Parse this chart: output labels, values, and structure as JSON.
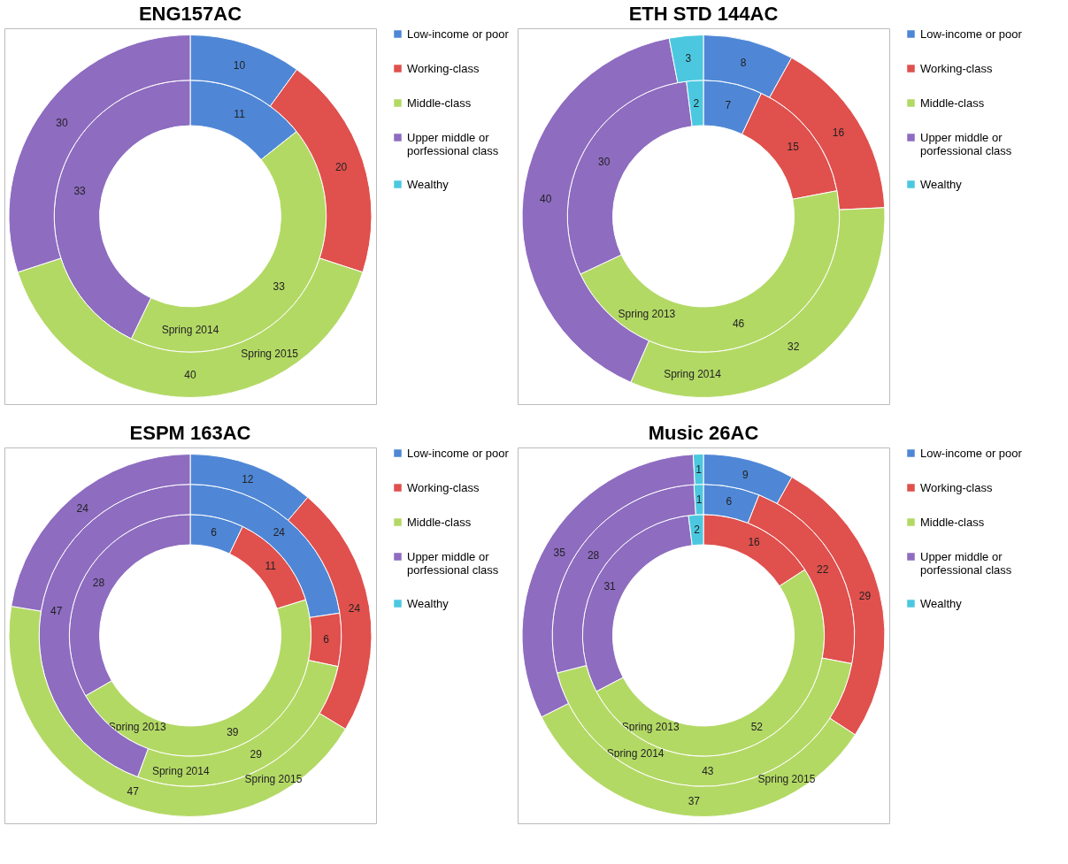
{
  "chart_data": [
    {
      "type": "donut",
      "title": "ENG157AC",
      "categories": [
        "Low-income or poor",
        "Working-class",
        "Middle-class",
        "Upper middle or porfessional class",
        "Wealthy"
      ],
      "colors": [
        "#4f87d6",
        "#e0504d",
        "#b3d965",
        "#8e6cc0",
        "#4bc8e0"
      ],
      "data_labels": true,
      "legend": "right",
      "series": [
        {
          "name": "Spring 2014",
          "values": [
            11,
            null,
            33,
            33,
            null
          ]
        },
        {
          "name": "Spring 2015",
          "values": [
            10,
            20,
            40,
            30,
            null
          ]
        }
      ]
    },
    {
      "type": "donut",
      "title": "ETH STD 144AC",
      "categories": [
        "Low-income or poor",
        "Working-class",
        "Middle-class",
        "Upper middle or porfessional class",
        "Wealthy"
      ],
      "colors": [
        "#4f87d6",
        "#e0504d",
        "#b3d965",
        "#8e6cc0",
        "#4bc8e0"
      ],
      "data_labels": true,
      "legend": "right",
      "series": [
        {
          "name": "Spring 2013",
          "values": [
            7,
            15,
            46,
            30,
            2
          ]
        },
        {
          "name": "Spring 2014",
          "values": [
            8,
            16,
            32,
            40,
            3
          ]
        }
      ]
    },
    {
      "type": "donut",
      "title": "ESPM 163AC",
      "categories": [
        "Low-income or poor",
        "Working-class",
        "Middle-class",
        "Upper middle or porfessional class",
        "Wealthy"
      ],
      "colors": [
        "#4f87d6",
        "#e0504d",
        "#b3d965",
        "#8e6cc0",
        "#4bc8e0"
      ],
      "data_labels": true,
      "legend": "right",
      "series": [
        {
          "name": "Spring 2013",
          "values": [
            6,
            11,
            39,
            28,
            null
          ]
        },
        {
          "name": "Spring 2014",
          "values": [
            24,
            6,
            29,
            47,
            null
          ]
        },
        {
          "name": "Spring 2015",
          "values": [
            12,
            24,
            47,
            24,
            null
          ]
        }
      ]
    },
    {
      "type": "donut",
      "title": "Music 26AC",
      "categories": [
        "Low-income or poor",
        "Working-class",
        "Middle-class",
        "Upper middle or porfessional class",
        "Wealthy"
      ],
      "colors": [
        "#4f87d6",
        "#e0504d",
        "#b3d965",
        "#8e6cc0",
        "#4bc8e0"
      ],
      "data_labels": true,
      "legend": "right",
      "series": [
        {
          "name": "Spring 2013",
          "values": [
            null,
            16,
            52,
            31,
            2
          ]
        },
        {
          "name": "Spring 2014",
          "values": [
            6,
            22,
            43,
            28,
            1
          ]
        },
        {
          "name": "Spring 2015",
          "values": [
            9,
            29,
            37,
            35,
            1
          ]
        }
      ]
    }
  ]
}
